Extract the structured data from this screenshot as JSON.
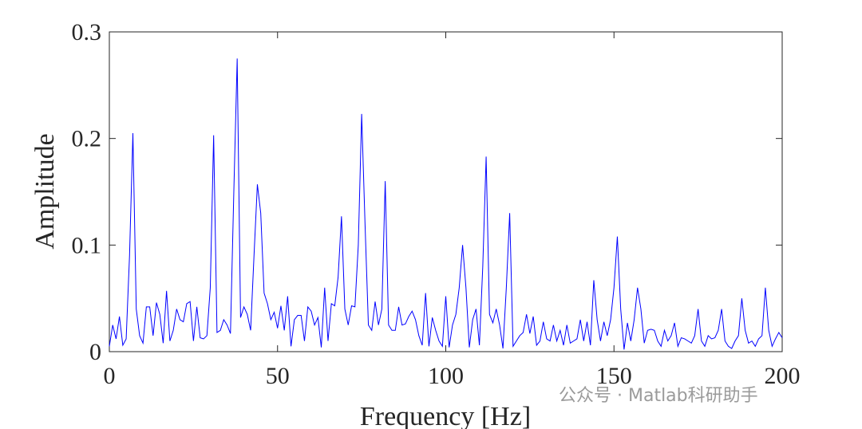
{
  "chart_data": {
    "type": "line",
    "xlabel": "Frequency [Hz]",
    "ylabel": "Amplitude",
    "annotation": "公众号 · Matlab科研助手",
    "xlim": [
      0,
      200
    ],
    "ylim": [
      0,
      0.3
    ],
    "xticks": [
      0,
      50,
      100,
      150,
      200
    ],
    "yticks": [
      0,
      0.1,
      0.2,
      0.3
    ],
    "x": [
      0,
      1,
      2,
      3,
      4,
      5,
      6,
      7,
      8,
      9,
      10,
      11,
      12,
      13,
      14,
      15,
      16,
      17,
      18,
      19,
      20,
      21,
      22,
      23,
      24,
      25,
      26,
      27,
      28,
      29,
      30,
      31,
      32,
      33,
      34,
      35,
      36,
      37,
      38,
      39,
      40,
      41,
      42,
      43,
      44,
      45,
      46,
      47,
      48,
      49,
      50,
      51,
      52,
      53,
      54,
      55,
      56,
      57,
      58,
      59,
      60,
      61,
      62,
      63,
      64,
      65,
      66,
      67,
      68,
      69,
      70,
      71,
      72,
      73,
      74,
      75,
      76,
      77,
      78,
      79,
      80,
      81,
      82,
      83,
      84,
      85,
      86,
      87,
      88,
      89,
      90,
      91,
      92,
      93,
      94,
      95,
      96,
      97,
      98,
      99,
      100,
      101,
      102,
      103,
      104,
      105,
      106,
      107,
      108,
      109,
      110,
      111,
      112,
      113,
      114,
      115,
      116,
      117,
      118,
      119,
      120,
      121,
      122,
      123,
      124,
      125,
      126,
      127,
      128,
      129,
      130,
      131,
      132,
      133,
      134,
      135,
      136,
      137,
      138,
      139,
      140,
      141,
      142,
      143,
      144,
      145,
      146,
      147,
      148,
      149,
      150,
      151,
      152,
      153,
      154,
      155,
      156,
      157,
      158,
      159,
      160,
      161,
      162,
      163,
      164,
      165,
      166,
      167,
      168,
      169,
      170,
      171,
      172,
      173,
      174,
      175,
      176,
      177,
      178,
      179,
      180,
      181,
      182,
      183,
      184,
      185,
      186,
      187,
      188,
      189,
      190,
      191,
      192,
      193,
      194,
      195,
      196,
      197,
      198,
      199,
      200
    ],
    "series": [
      {
        "name": "Amplitude",
        "color": "#0000ff",
        "values": [
          0.005,
          0.025,
          0.012,
          0.033,
          0.006,
          0.012,
          0.09,
          0.205,
          0.04,
          0.015,
          0.008,
          0.042,
          0.042,
          0.015,
          0.046,
          0.035,
          0.008,
          0.057,
          0.01,
          0.02,
          0.04,
          0.03,
          0.028,
          0.045,
          0.047,
          0.01,
          0.042,
          0.013,
          0.012,
          0.015,
          0.06,
          0.203,
          0.018,
          0.02,
          0.03,
          0.025,
          0.017,
          0.15,
          0.275,
          0.032,
          0.042,
          0.035,
          0.02,
          0.09,
          0.157,
          0.13,
          0.055,
          0.045,
          0.03,
          0.037,
          0.022,
          0.043,
          0.02,
          0.052,
          0.005,
          0.03,
          0.034,
          0.034,
          0.01,
          0.042,
          0.038,
          0.025,
          0.032,
          0.004,
          0.06,
          0.01,
          0.045,
          0.043,
          0.07,
          0.127,
          0.04,
          0.025,
          0.043,
          0.042,
          0.1,
          0.223,
          0.12,
          0.025,
          0.02,
          0.047,
          0.025,
          0.04,
          0.16,
          0.025,
          0.02,
          0.02,
          0.042,
          0.025,
          0.026,
          0.033,
          0.038,
          0.03,
          0.015,
          0.006,
          0.055,
          0.005,
          0.032,
          0.02,
          0.01,
          0.005,
          0.052,
          0.004,
          0.025,
          0.035,
          0.06,
          0.1,
          0.06,
          0.004,
          0.03,
          0.04,
          0.006,
          0.08,
          0.183,
          0.035,
          0.027,
          0.04,
          0.025,
          0.003,
          0.06,
          0.13,
          0.005,
          0.01,
          0.015,
          0.018,
          0.035,
          0.017,
          0.033,
          0.006,
          0.01,
          0.028,
          0.012,
          0.01,
          0.025,
          0.01,
          0.02,
          0.006,
          0.025,
          0.008,
          0.01,
          0.012,
          0.03,
          0.01,
          0.028,
          0.006,
          0.067,
          0.03,
          0.01,
          0.028,
          0.015,
          0.03,
          0.06,
          0.108,
          0.04,
          0.002,
          0.027,
          0.01,
          0.03,
          0.06,
          0.04,
          0.008,
          0.02,
          0.021,
          0.02,
          0.01,
          0.005,
          0.02,
          0.01,
          0.015,
          0.027,
          0.005,
          0.013,
          0.012,
          0.01,
          0.008,
          0.015,
          0.04,
          0.01,
          0.005,
          0.015,
          0.012,
          0.013,
          0.02,
          0.04,
          0.01,
          0.005,
          0.003,
          0.01,
          0.015,
          0.05,
          0.02,
          0.008,
          0.01,
          0.005,
          0.012,
          0.015,
          0.06,
          0.02,
          0.005,
          0.012,
          0.018,
          0.013
        ]
      }
    ]
  }
}
